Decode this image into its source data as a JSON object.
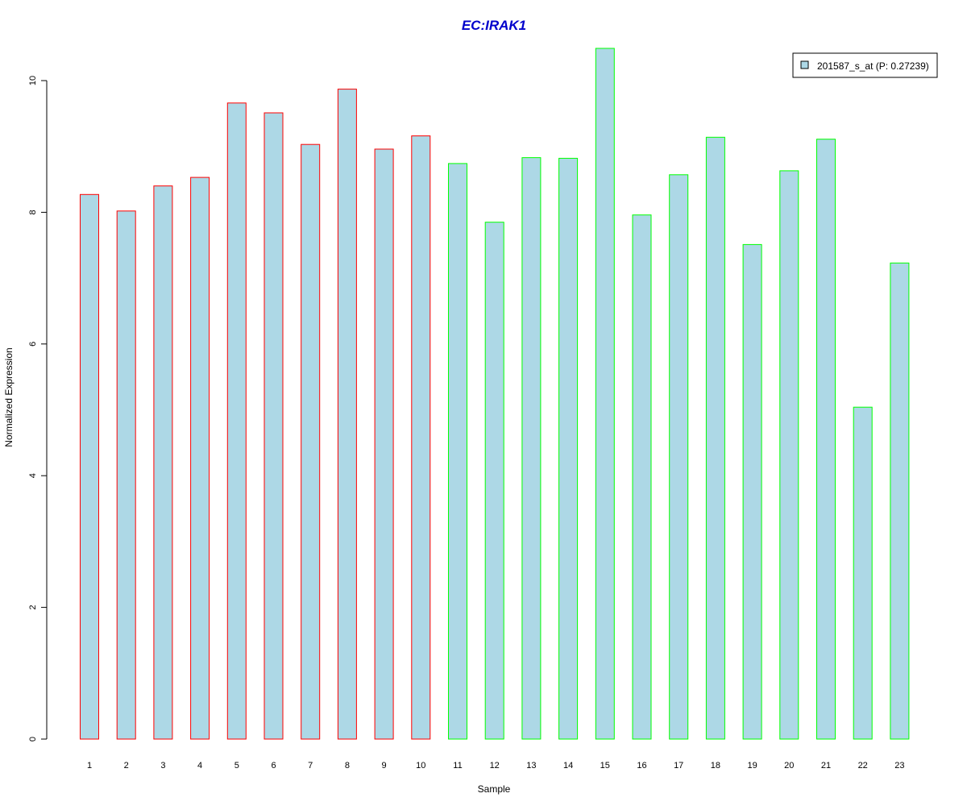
{
  "chart_data": {
    "type": "bar",
    "title": "EC:IRAK1",
    "xlabel": "Sample",
    "ylabel": "Normalized Expression",
    "ylim": [
      0,
      10.5
    ],
    "yticks": [
      0,
      2,
      4,
      6,
      8,
      10
    ],
    "categories": [
      "1",
      "2",
      "3",
      "4",
      "5",
      "6",
      "7",
      "8",
      "9",
      "10",
      "11",
      "12",
      "13",
      "14",
      "15",
      "16",
      "17",
      "18",
      "19",
      "20",
      "21",
      "22",
      "23"
    ],
    "series": [
      {
        "name": "201587_s_at (P: 0.27239)",
        "values": [
          8.27,
          8.02,
          8.4,
          8.53,
          9.66,
          9.51,
          9.03,
          9.87,
          8.96,
          9.16,
          8.74,
          7.85,
          8.83,
          8.82,
          10.49,
          7.96,
          8.57,
          9.14,
          7.51,
          8.63,
          9.11,
          5.04,
          7.23
        ]
      }
    ],
    "bar_fill": "#add8e6",
    "group_colors": [
      "#ff0000",
      "#ff0000",
      "#ff0000",
      "#ff0000",
      "#ff0000",
      "#ff0000",
      "#ff0000",
      "#ff0000",
      "#ff0000",
      "#ff0000",
      "#00ff00",
      "#00ff00",
      "#00ff00",
      "#00ff00",
      "#00ff00",
      "#00ff00",
      "#00ff00",
      "#00ff00",
      "#00ff00",
      "#00ff00",
      "#00ff00",
      "#00ff00",
      "#00ff00"
    ],
    "legend_position": "top-right",
    "grid": false
  }
}
